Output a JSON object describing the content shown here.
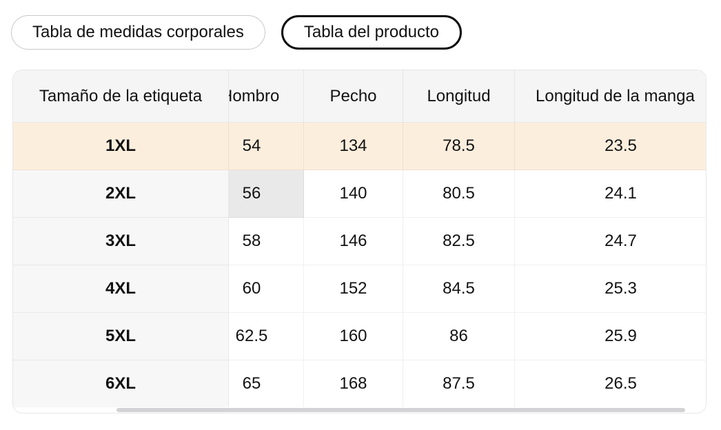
{
  "tabs": [
    {
      "label": "Tabla de medidas corporales",
      "selected": false
    },
    {
      "label": "Tabla del producto",
      "selected": true
    }
  ],
  "table": {
    "columns": [
      "Tamaño de la etiqueta",
      "Hombro",
      "Pecho",
      "Longitud",
      "Longitud de la manga"
    ],
    "rows": [
      {
        "label": "1XL",
        "values": [
          "54",
          "134",
          "78.5",
          "23.5"
        ],
        "highlighted": true
      },
      {
        "label": "2XL",
        "values": [
          "56",
          "140",
          "80.5",
          "24.1"
        ],
        "highlighted": false
      },
      {
        "label": "3XL",
        "values": [
          "58",
          "146",
          "82.5",
          "24.7"
        ],
        "highlighted": false
      },
      {
        "label": "4XL",
        "values": [
          "60",
          "152",
          "84.5",
          "25.3"
        ],
        "highlighted": false
      },
      {
        "label": "5XL",
        "values": [
          "62.5",
          "160",
          "86",
          "25.9"
        ],
        "highlighted": false
      },
      {
        "label": "6XL",
        "values": [
          "65",
          "168",
          "87.5",
          "26.5"
        ],
        "highlighted": false
      }
    ]
  },
  "states": {
    "selected_tab": "Tabla del producto",
    "highlighted_row": "1XL",
    "hovered_cell": {
      "row": "2XL",
      "column": "Hombro"
    },
    "horizontal_scroll": "partial - Hombro header clipped at left, last column clipped at right"
  },
  "colors": {
    "highlight_row_bg": "#fceedd",
    "hovered_cell_bg": "#e9e9ea",
    "header_bg": "#f5f5f6",
    "sticky_column_bg": "#f7f7f8",
    "card_border": "#e7e7e9",
    "active_tab_border": "#0b0b0d",
    "inactive_tab_border": "#c8c8cc",
    "scrollbar_thumb": "#d3d3d5",
    "text": "#121212"
  }
}
